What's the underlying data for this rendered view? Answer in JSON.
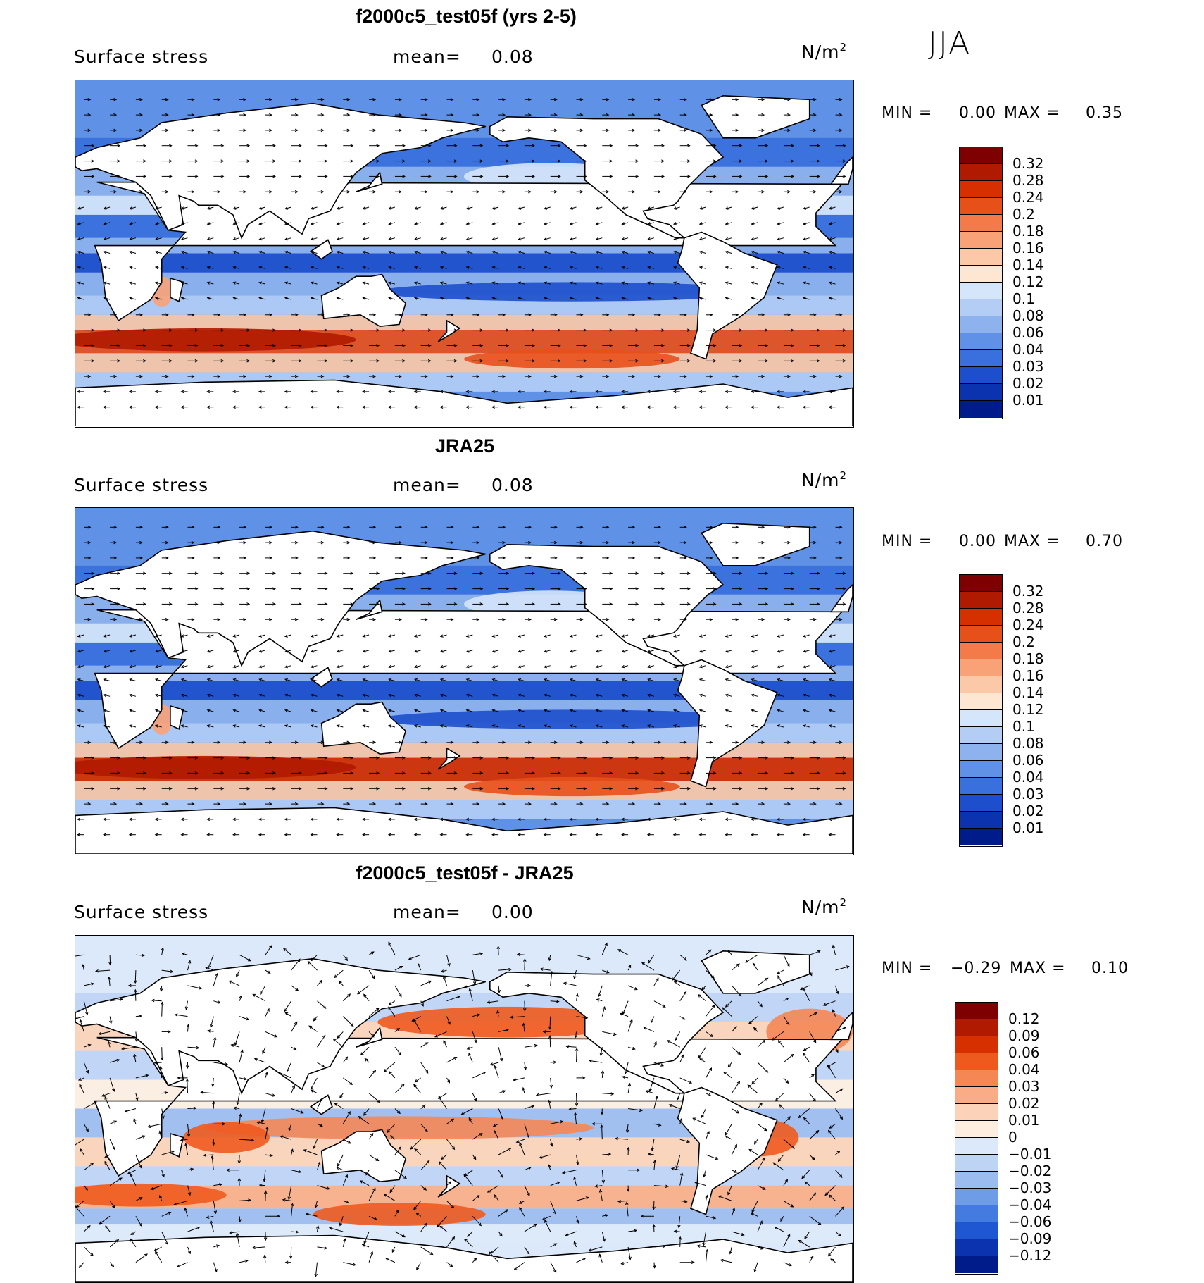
{
  "season": "JJA",
  "panels": [
    {
      "title": "f2000c5_test05f (yrs 2-5)",
      "variable": "Surface stress",
      "mean_label": "mean=",
      "mean_value": "0.08",
      "units": "N/m",
      "units_sup": "2",
      "min_label": "MIN =",
      "min_value": "0.00",
      "max_label": "MAX =",
      "max_value": "0.35",
      "colorbar_labels": [
        "0.32",
        "0.28",
        "0.24",
        "0.2",
        "0.18",
        "0.16",
        "0.14",
        "0.12",
        "0.1",
        "0.08",
        "0.06",
        "0.04",
        "0.03",
        "0.02",
        "0.01"
      ]
    },
    {
      "title": "JRA25",
      "variable": "Surface stress",
      "mean_label": "mean=",
      "mean_value": "0.08",
      "units": "N/m",
      "units_sup": "2",
      "min_label": "MIN =",
      "min_value": "0.00",
      "max_label": "MAX =",
      "max_value": "0.70",
      "colorbar_labels": [
        "0.32",
        "0.28",
        "0.24",
        "0.2",
        "0.18",
        "0.16",
        "0.14",
        "0.12",
        "0.1",
        "0.08",
        "0.06",
        "0.04",
        "0.03",
        "0.02",
        "0.01"
      ]
    },
    {
      "title": "f2000c5_test05f - JRA25",
      "variable": "Surface stress",
      "mean_label": "mean=",
      "mean_value": "0.00",
      "units": "N/m",
      "units_sup": "2",
      "min_label": "MIN =",
      "min_value": "−0.29",
      "max_label": "MAX =",
      "max_value": "0.10",
      "colorbar_labels": [
        "0.12",
        "0.09",
        "0.06",
        "0.04",
        "0.03",
        "0.02",
        "0.01",
        "0",
        "−0.01",
        "−0.02",
        "−0.03",
        "−0.04",
        "−0.06",
        "−0.09",
        "−0.12"
      ]
    }
  ],
  "colors": {
    "abs_scale": [
      "#7f0000",
      "#b01a00",
      "#d63000",
      "#e8501a",
      "#f47a4a",
      "#f9a278",
      "#fcc9a8",
      "#fde6d2",
      "#d6e6fa",
      "#b3cdf5",
      "#8db2ee",
      "#5f91e6",
      "#3a70dd",
      "#1d4fcc",
      "#0b33b0",
      "#001c8a"
    ],
    "diff_scale": [
      "#7f0000",
      "#b01a00",
      "#d63000",
      "#ee5a1e",
      "#f58755",
      "#f9ac86",
      "#fcd3b8",
      "#fdeee0",
      "#dce9fa",
      "#bed4f5",
      "#9bbcef",
      "#6e9ce7",
      "#447be0",
      "#1f56d2",
      "#0b33b0",
      "#001c8a"
    ]
  }
}
